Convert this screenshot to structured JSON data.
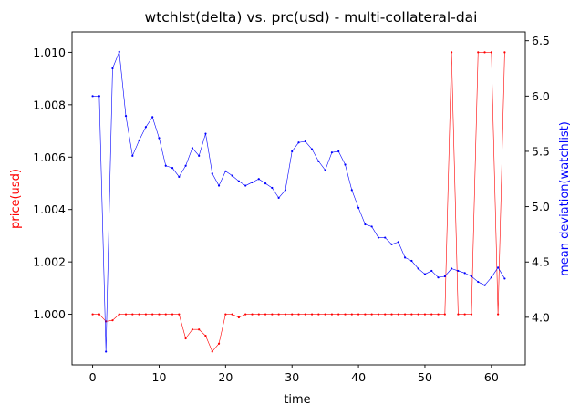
{
  "chart_data": {
    "type": "line",
    "title": "wtchlst(delta) vs. prc(usd) - multi-collateral-dai",
    "xlabel": "time",
    "ylabel_left": "price(usd)",
    "ylabel_right": "mean deviation(watchlist)",
    "xlim": [
      -3.1,
      65.1
    ],
    "ylim_left": [
      0.99807,
      1.01078
    ],
    "ylim_right": [
      3.57,
      6.58
    ],
    "x_ticks": [
      0,
      10,
      20,
      30,
      40,
      50,
      60
    ],
    "y_ticks_left": [
      1.0,
      1.002,
      1.004,
      1.006,
      1.008,
      1.01
    ],
    "y_ticks_left_labels": [
      "1.000",
      "1.002",
      "1.004",
      "1.006",
      "1.008",
      "1.010"
    ],
    "y_ticks_right": [
      4.0,
      4.5,
      5.0,
      5.5,
      6.0,
      6.5
    ],
    "y_ticks_right_labels": [
      "4.0",
      "4.5",
      "5.0",
      "5.5",
      "6.0",
      "6.5"
    ],
    "grid": false,
    "series": [
      {
        "axis": "left",
        "color": "#ff0000",
        "x": [
          0,
          1,
          2,
          3,
          4,
          5,
          6,
          7,
          8,
          9,
          10,
          11,
          12,
          13,
          14,
          15,
          16,
          17,
          18,
          19,
          20,
          21,
          22,
          23,
          24,
          25,
          26,
          27,
          28,
          29,
          30,
          31,
          32,
          33,
          34,
          35,
          36,
          37,
          38,
          39,
          40,
          41,
          42,
          43,
          44,
          45,
          46,
          47,
          48,
          49,
          50,
          51,
          52,
          53,
          54,
          55,
          56,
          57,
          58,
          59,
          60,
          61,
          62
        ],
        "values": [
          1.0,
          1.0,
          0.99973,
          0.99977,
          1.0,
          1.0,
          1.0,
          1.0,
          1.0,
          1.0,
          1.0,
          1.0,
          1.0,
          1.0,
          0.99908,
          0.99942,
          0.99942,
          0.99918,
          0.99858,
          0.99888,
          1.0,
          1.0,
          0.99988,
          1.0,
          1.0,
          1.0,
          1.0,
          1.0,
          1.0,
          1.0,
          1.0,
          1.0,
          1.0,
          1.0,
          1.0,
          1.0,
          1.0,
          1.0,
          1.0,
          1.0,
          1.0,
          1.0,
          1.0,
          1.0,
          1.0,
          1.0,
          1.0,
          1.0,
          1.0,
          1.0,
          1.0,
          1.0,
          1.0,
          1.0,
          1.01,
          1.0,
          1.0,
          1.0,
          1.01,
          1.01,
          1.01,
          1.0,
          1.01
        ]
      },
      {
        "axis": "right",
        "color": "#0000ff",
        "x": [
          0,
          1,
          2,
          3,
          4,
          5,
          6,
          7,
          8,
          9,
          10,
          11,
          12,
          13,
          14,
          15,
          16,
          17,
          18,
          19,
          20,
          21,
          22,
          23,
          24,
          25,
          26,
          27,
          28,
          29,
          30,
          31,
          32,
          33,
          34,
          35,
          36,
          37,
          38,
          39,
          40,
          41,
          42,
          43,
          44,
          45,
          46,
          47,
          48,
          49,
          50,
          51,
          52,
          53,
          54,
          55,
          56,
          57,
          58,
          59,
          60,
          61,
          62
        ],
        "values": [
          6.0,
          6.0,
          3.69,
          6.25,
          6.4,
          5.82,
          5.46,
          5.6,
          5.72,
          5.81,
          5.62,
          5.37,
          5.35,
          5.27,
          5.37,
          5.53,
          5.46,
          5.66,
          5.3,
          5.19,
          5.32,
          5.28,
          5.23,
          5.19,
          5.22,
          5.25,
          5.21,
          5.17,
          5.08,
          5.15,
          5.5,
          5.58,
          5.59,
          5.52,
          5.41,
          5.33,
          5.49,
          5.5,
          5.38,
          5.15,
          4.99,
          4.84,
          4.82,
          4.72,
          4.72,
          4.66,
          4.68,
          4.54,
          4.51,
          4.44,
          4.39,
          4.42,
          4.36,
          4.37,
          4.44,
          4.42,
          4.4,
          4.37,
          4.32,
          4.29,
          4.36,
          4.45,
          4.35
        ]
      }
    ]
  }
}
